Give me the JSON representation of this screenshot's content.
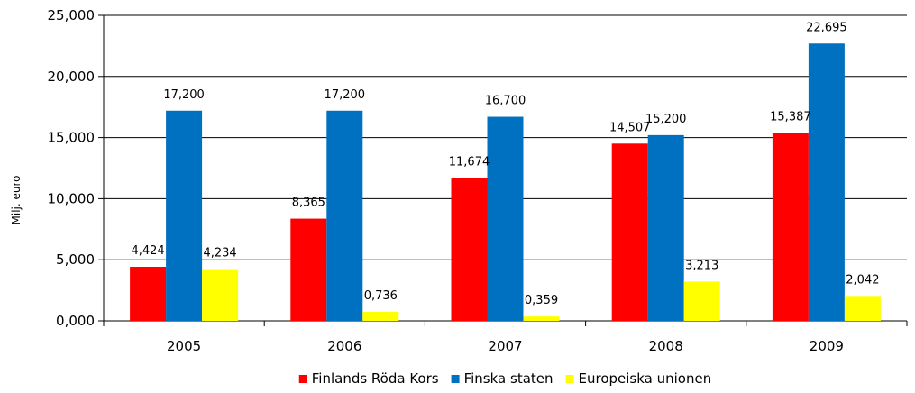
{
  "chart_data": {
    "type": "bar",
    "categories": [
      "2005",
      "2006",
      "2007",
      "2008",
      "2009"
    ],
    "series": [
      {
        "name": "Finlands Röda Kors",
        "color": "#ff0000",
        "values": [
          4.424,
          8.365,
          11.674,
          14.507,
          15.387
        ],
        "labels": [
          "4,424",
          "8,365",
          "11,674",
          "14,507",
          "15,387"
        ]
      },
      {
        "name": "Finska staten",
        "color": "#0070c0",
        "values": [
          17.2,
          17.2,
          16.7,
          15.2,
          22.695
        ],
        "labels": [
          "17,200",
          "17,200",
          "16,700",
          "15,200",
          "22,695"
        ]
      },
      {
        "name": "Europeiska unionen",
        "color": "#ffff00",
        "values": [
          4.234,
          0.736,
          0.359,
          3.213,
          2.042
        ],
        "labels": [
          "4,234",
          "0,736",
          "0,359",
          "3,213",
          "2,042"
        ]
      }
    ],
    "ylabel": "Milj. euro",
    "ylim": [
      0,
      25
    ],
    "yticks": [
      0,
      5,
      10,
      15,
      20,
      25
    ],
    "ytick_labels": [
      "0,000",
      "5,000",
      "10,000",
      "15,000",
      "20,000",
      "25,000"
    ],
    "grid": true,
    "legend_position": "bottom"
  }
}
